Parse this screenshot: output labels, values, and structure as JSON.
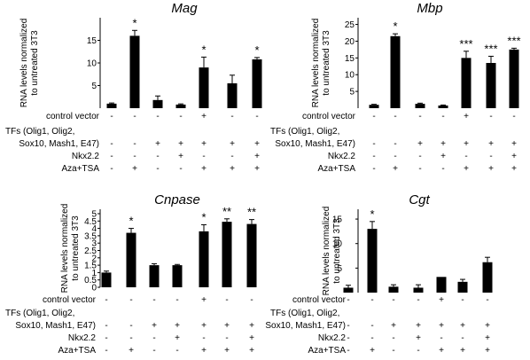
{
  "conditions": {
    "row_labels": [
      "control vector",
      "TFs (Olig1, Olig2,",
      "Sox10, Mash1, E47)",
      "Nkx2.2",
      "Aza+TSA"
    ],
    "row_values": [
      [
        "-",
        "-",
        "-",
        "-",
        "+",
        "-",
        "-"
      ],
      [
        "-",
        "-",
        "+",
        "+",
        "+",
        "+",
        "+"
      ],
      [
        "-",
        "-",
        "-",
        "+",
        "-",
        "-",
        "+"
      ],
      [
        "-",
        "+",
        "-",
        "-",
        "+",
        "+",
        "+"
      ]
    ]
  },
  "chart_data": [
    {
      "type": "bar",
      "title": "Mag",
      "ylabel": [
        "RNA levels normalized",
        "to untreated 3T3"
      ],
      "categories": [
        "1",
        "2",
        "3",
        "4",
        "5",
        "6",
        "7"
      ],
      "values": [
        1,
        16,
        1.8,
        0.8,
        9,
        5.5,
        10.8
      ],
      "errors": [
        0.15,
        1.2,
        0.9,
        0.15,
        2.3,
        1.8,
        0.4
      ],
      "sig": [
        "",
        "*",
        "",
        "",
        "*",
        "",
        "*"
      ],
      "ylim": [
        0,
        20
      ],
      "yticks": [
        5,
        10,
        15
      ],
      "grid": false
    },
    {
      "type": "bar",
      "title": "Mbp",
      "ylabel": [
        "RNA levels normalized",
        "to untreated 3T3"
      ],
      "categories": [
        "1",
        "2",
        "3",
        "4",
        "5",
        "6",
        "7"
      ],
      "values": [
        1,
        21.5,
        1.3,
        0.8,
        15,
        13.5,
        17.5
      ],
      "errors": [
        0.15,
        0.7,
        0.2,
        0.15,
        2,
        2,
        0.4
      ],
      "sig": [
        "",
        "*",
        "",
        "",
        "***",
        "***",
        "***"
      ],
      "ylim": [
        0,
        27
      ],
      "yticks": [
        5,
        10,
        15,
        20,
        25
      ],
      "grid": false
    },
    {
      "type": "bar",
      "title": "Cnpase",
      "ylabel": [
        "RNA levels normalized",
        "to untreated 3T3"
      ],
      "categories": [
        "1",
        "2",
        "3",
        "4",
        "5",
        "6",
        "7"
      ],
      "values": [
        1,
        3.7,
        1.5,
        1.5,
        3.8,
        4.45,
        4.3
      ],
      "errors": [
        0.1,
        0.3,
        0.1,
        0.05,
        0.45,
        0.2,
        0.3
      ],
      "sig": [
        "",
        "*",
        "",
        "",
        "*",
        "**",
        "**"
      ],
      "ylim": [
        0,
        5.3
      ],
      "yticks": [
        0,
        0.5,
        1,
        1.5,
        2,
        2.5,
        3,
        3.5,
        4,
        4.5,
        5
      ],
      "grid": false
    },
    {
      "type": "bar",
      "title": "Cgt",
      "ylabel": [
        "RNA levels normalized",
        "to untreated 3T3"
      ],
      "categories": [
        "1",
        "2",
        "3",
        "4",
        "5",
        "6",
        "7"
      ],
      "values": [
        1,
        13,
        1.2,
        1,
        3.2,
        2.2,
        6.2
      ],
      "errors": [
        0.5,
        1.5,
        0.4,
        0.6,
        0,
        0.5,
        1
      ],
      "sig": [
        "",
        "*",
        "",
        "",
        "",
        "",
        ""
      ],
      "ylim": [
        0,
        17
      ],
      "yticks": [
        5,
        10,
        15
      ],
      "grid": false
    }
  ]
}
